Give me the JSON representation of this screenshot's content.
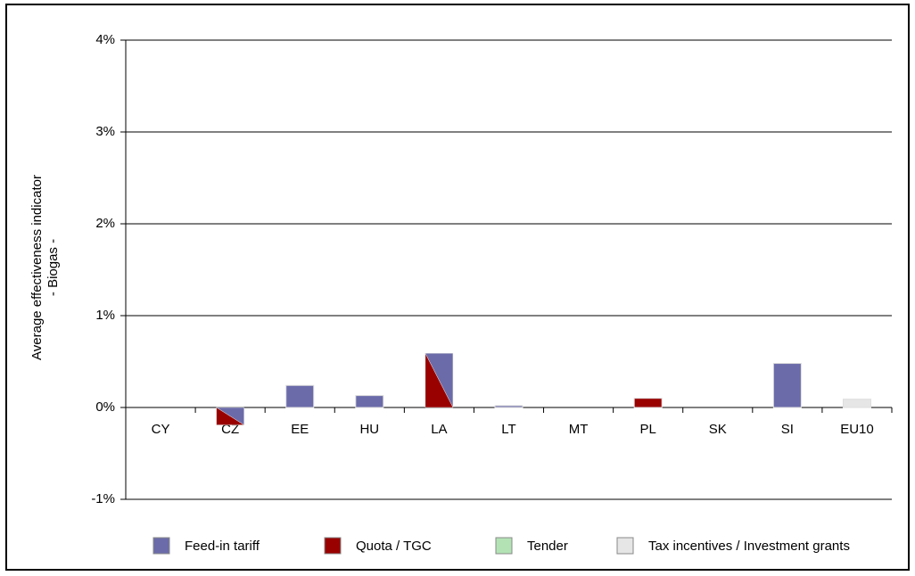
{
  "chart_data": {
    "type": "bar",
    "ylabel": [
      "Average effectiveness indicator",
      "- Biogas -"
    ],
    "categories": [
      "CY",
      "CZ",
      "EE",
      "HU",
      "LA",
      "LT",
      "MT",
      "PL",
      "SK",
      "SI",
      "EU10"
    ],
    "series": [
      {
        "name": "Feed-in tariff",
        "color": "#6b6baa",
        "values": [
          null,
          -0.19,
          0.24,
          0.13,
          0.59,
          0.02,
          null,
          null,
          null,
          0.48,
          null
        ]
      },
      {
        "name": "Quota / TGC",
        "color": "#990000",
        "values": [
          null,
          -0.19,
          null,
          null,
          0.59,
          null,
          null,
          0.1,
          null,
          null,
          null
        ]
      },
      {
        "name": "Tender",
        "color": "#b3e3b5",
        "values": [
          null,
          null,
          null,
          null,
          null,
          null,
          null,
          null,
          null,
          null,
          null
        ]
      },
      {
        "name": "Tax incentives / Investment grants",
        "color": "#e6e6e6",
        "values": [
          null,
          null,
          null,
          null,
          null,
          null,
          null,
          null,
          null,
          null,
          0.09
        ]
      }
    ],
    "ylim": [
      -1,
      4
    ],
    "yticks": [
      {
        "value": -1,
        "label": "-1%"
      },
      {
        "value": 0,
        "label": "0%"
      },
      {
        "value": 1,
        "label": "1%"
      },
      {
        "value": 2,
        "label": "2%"
      },
      {
        "value": 3,
        "label": "3%"
      },
      {
        "value": 4,
        "label": "4%"
      }
    ],
    "grid": true
  }
}
